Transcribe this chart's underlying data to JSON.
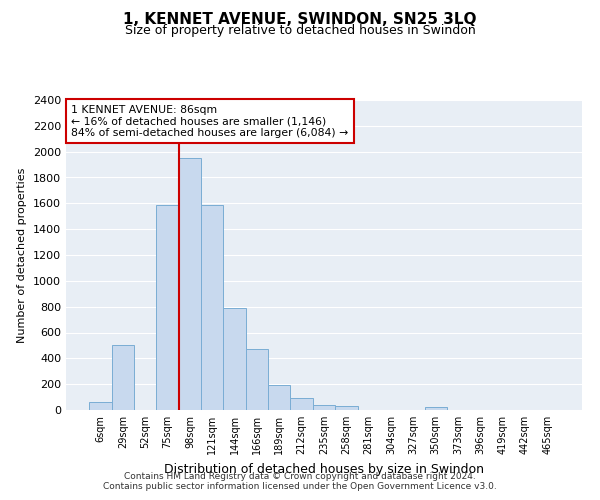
{
  "title": "1, KENNET AVENUE, SWINDON, SN25 3LQ",
  "subtitle": "Size of property relative to detached houses in Swindon",
  "xlabel": "Distribution of detached houses by size in Swindon",
  "ylabel": "Number of detached properties",
  "categories": [
    "6sqm",
    "29sqm",
    "52sqm",
    "75sqm",
    "98sqm",
    "121sqm",
    "144sqm",
    "166sqm",
    "189sqm",
    "212sqm",
    "235sqm",
    "258sqm",
    "281sqm",
    "304sqm",
    "327sqm",
    "350sqm",
    "373sqm",
    "396sqm",
    "419sqm",
    "442sqm",
    "465sqm"
  ],
  "values": [
    60,
    500,
    0,
    1590,
    1950,
    1590,
    790,
    470,
    195,
    90,
    35,
    30,
    0,
    0,
    0,
    25,
    0,
    0,
    0,
    0,
    0
  ],
  "bar_color": "#c8d9ee",
  "bar_edge_color": "#7aadd4",
  "vline_color": "#cc0000",
  "annotation_text": "1 KENNET AVENUE: 86sqm\n← 16% of detached houses are smaller (1,146)\n84% of semi-detached houses are larger (6,084) →",
  "annotation_box_color": "#cc0000",
  "ylim": [
    0,
    2400
  ],
  "yticks": [
    0,
    200,
    400,
    600,
    800,
    1000,
    1200,
    1400,
    1600,
    1800,
    2000,
    2200,
    2400
  ],
  "footer_line1": "Contains HM Land Registry data © Crown copyright and database right 2024.",
  "footer_line2": "Contains public sector information licensed under the Open Government Licence v3.0.",
  "bg_color": "#e8eef5",
  "title_fontsize": 11,
  "subtitle_fontsize": 9,
  "ylabel_fontsize": 8,
  "xlabel_fontsize": 9,
  "ytick_fontsize": 8,
  "xtick_fontsize": 7
}
